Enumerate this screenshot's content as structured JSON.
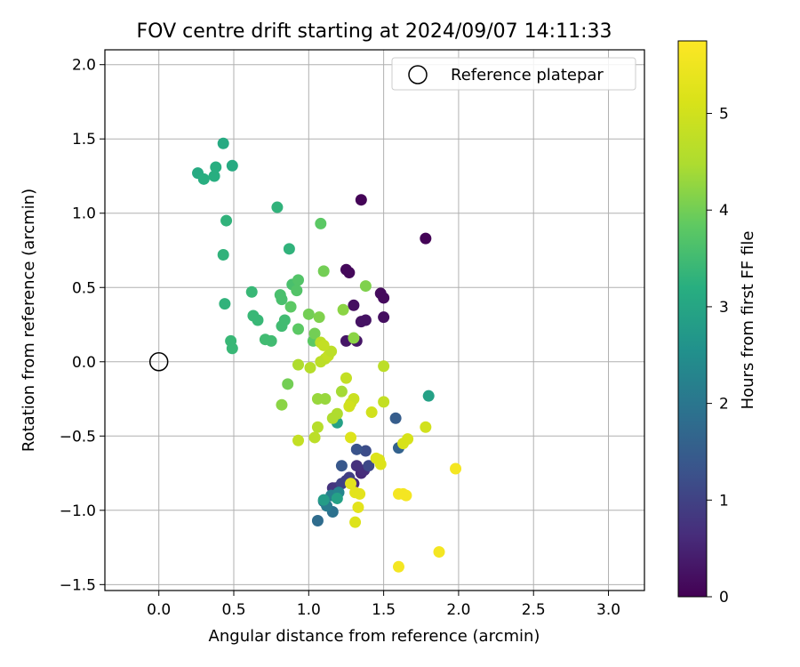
{
  "chart_data": {
    "type": "scatter",
    "title": "FOV centre drift starting at 2024/09/07 14:11:33",
    "xlabel": "Angular distance from reference (arcmin)",
    "ylabel": "Rotation from reference (arcmin)",
    "xlim": [
      -0.36,
      3.24
    ],
    "ylim": [
      -1.54,
      2.1
    ],
    "xticks": [
      0.0,
      0.5,
      1.0,
      1.5,
      2.0,
      2.5,
      3.0
    ],
    "xtick_labels": [
      "0.0",
      "0.5",
      "1.0",
      "1.5",
      "2.0",
      "2.5",
      "3.0"
    ],
    "yticks": [
      -1.5,
      -1.0,
      -0.5,
      0.0,
      0.5,
      1.0,
      1.5,
      2.0
    ],
    "ytick_labels": [
      "−1.5",
      "−1.0",
      "−0.5",
      "0.0",
      "0.5",
      "1.0",
      "1.5",
      "2.0"
    ],
    "grid": true,
    "legend_position": "top-right",
    "legend": [
      {
        "label": "Reference platepar",
        "marker": "open-circle"
      }
    ],
    "reference_point": {
      "x": 0.0,
      "y": 0.0
    },
    "colorbar": {
      "label": "Hours from first FF file",
      "colormap": "viridis",
      "range": [
        0,
        5.75
      ],
      "ticks": [
        0,
        1,
        2,
        3,
        4,
        5
      ],
      "tick_labels": [
        "0",
        "1",
        "2",
        "3",
        "4",
        "5"
      ]
    },
    "points": [
      {
        "x": 1.35,
        "y": 1.09,
        "c": 0.05
      },
      {
        "x": 1.78,
        "y": 0.83,
        "c": 0.05
      },
      {
        "x": 1.25,
        "y": 0.62,
        "c": 0.1
      },
      {
        "x": 1.27,
        "y": 0.6,
        "c": 0.1
      },
      {
        "x": 1.48,
        "y": 0.46,
        "c": 0.15
      },
      {
        "x": 1.5,
        "y": 0.43,
        "c": 0.15
      },
      {
        "x": 1.3,
        "y": 0.38,
        "c": 0.2
      },
      {
        "x": 1.5,
        "y": 0.3,
        "c": 0.2
      },
      {
        "x": 1.35,
        "y": 0.27,
        "c": 0.25
      },
      {
        "x": 1.38,
        "y": 0.28,
        "c": 0.25
      },
      {
        "x": 1.25,
        "y": 0.14,
        "c": 0.3
      },
      {
        "x": 1.32,
        "y": 0.14,
        "c": 0.3
      },
      {
        "x": 1.3,
        "y": -0.82,
        "c": 0.6
      },
      {
        "x": 1.35,
        "y": -0.75,
        "c": 0.6
      },
      {
        "x": 1.37,
        "y": -0.73,
        "c": 0.65
      },
      {
        "x": 1.32,
        "y": -0.7,
        "c": 0.7
      },
      {
        "x": 1.16,
        "y": -0.85,
        "c": 0.75
      },
      {
        "x": 1.18,
        "y": -0.85,
        "c": 0.8
      },
      {
        "x": 1.25,
        "y": -0.8,
        "c": 0.9
      },
      {
        "x": 1.27,
        "y": -0.78,
        "c": 0.95
      },
      {
        "x": 1.22,
        "y": -0.82,
        "c": 1.0
      },
      {
        "x": 1.4,
        "y": -0.7,
        "c": 1.1
      },
      {
        "x": 1.38,
        "y": -0.6,
        "c": 1.2
      },
      {
        "x": 1.32,
        "y": -0.59,
        "c": 1.3
      },
      {
        "x": 1.22,
        "y": -0.7,
        "c": 1.4
      },
      {
        "x": 1.58,
        "y": -0.38,
        "c": 1.5
      },
      {
        "x": 1.6,
        "y": -0.58,
        "c": 1.6
      },
      {
        "x": 1.06,
        "y": -1.07,
        "c": 1.8
      },
      {
        "x": 1.16,
        "y": -1.01,
        "c": 1.9
      },
      {
        "x": 1.1,
        "y": -0.94,
        "c": 2.0
      },
      {
        "x": 1.12,
        "y": -0.97,
        "c": 2.1
      },
      {
        "x": 1.15,
        "y": -0.9,
        "c": 2.2
      },
      {
        "x": 1.2,
        "y": -0.88,
        "c": 2.3
      },
      {
        "x": 1.8,
        "y": -0.23,
        "c": 2.9
      },
      {
        "x": 1.1,
        "y": -0.93,
        "c": 2.8
      },
      {
        "x": 1.19,
        "y": -0.92,
        "c": 2.9
      },
      {
        "x": 1.19,
        "y": -0.41,
        "c": 2.9
      },
      {
        "x": 0.43,
        "y": 1.47,
        "c": 3.1
      },
      {
        "x": 0.49,
        "y": 1.32,
        "c": 3.1
      },
      {
        "x": 0.26,
        "y": 1.27,
        "c": 3.1
      },
      {
        "x": 0.38,
        "y": 1.31,
        "c": 3.2
      },
      {
        "x": 0.3,
        "y": 1.23,
        "c": 3.2
      },
      {
        "x": 0.37,
        "y": 1.25,
        "c": 3.2
      },
      {
        "x": 0.79,
        "y": 1.04,
        "c": 3.3
      },
      {
        "x": 0.45,
        "y": 0.95,
        "c": 3.3
      },
      {
        "x": 0.43,
        "y": 0.72,
        "c": 3.3
      },
      {
        "x": 0.87,
        "y": 0.76,
        "c": 3.3
      },
      {
        "x": 0.44,
        "y": 0.39,
        "c": 3.3
      },
      {
        "x": 0.62,
        "y": 0.47,
        "c": 3.4
      },
      {
        "x": 0.63,
        "y": 0.31,
        "c": 3.4
      },
      {
        "x": 0.66,
        "y": 0.28,
        "c": 3.4
      },
      {
        "x": 0.48,
        "y": 0.14,
        "c": 3.4
      },
      {
        "x": 0.49,
        "y": 0.09,
        "c": 3.4
      },
      {
        "x": 0.71,
        "y": 0.15,
        "c": 3.5
      },
      {
        "x": 0.75,
        "y": 0.14,
        "c": 3.5
      },
      {
        "x": 0.82,
        "y": 0.24,
        "c": 3.5
      },
      {
        "x": 0.84,
        "y": 0.28,
        "c": 3.5
      },
      {
        "x": 0.82,
        "y": 0.42,
        "c": 3.6
      },
      {
        "x": 0.81,
        "y": 0.45,
        "c": 3.6
      },
      {
        "x": 0.89,
        "y": 0.52,
        "c": 3.6
      },
      {
        "x": 0.92,
        "y": 0.48,
        "c": 3.7
      },
      {
        "x": 0.93,
        "y": 0.55,
        "c": 3.7
      },
      {
        "x": 0.88,
        "y": 0.37,
        "c": 3.8
      },
      {
        "x": 0.93,
        "y": 0.22,
        "c": 3.8
      },
      {
        "x": 1.08,
        "y": 0.93,
        "c": 3.8
      },
      {
        "x": 1.03,
        "y": 0.14,
        "c": 3.8
      },
      {
        "x": 1.1,
        "y": 0.61,
        "c": 4.0
      },
      {
        "x": 1.04,
        "y": 0.19,
        "c": 4.0
      },
      {
        "x": 1.0,
        "y": 0.32,
        "c": 4.0
      },
      {
        "x": 1.07,
        "y": 0.3,
        "c": 4.1
      },
      {
        "x": 0.86,
        "y": -0.15,
        "c": 4.0
      },
      {
        "x": 0.82,
        "y": -0.29,
        "c": 4.2
      },
      {
        "x": 1.38,
        "y": 0.51,
        "c": 4.1
      },
      {
        "x": 1.23,
        "y": 0.35,
        "c": 4.2
      },
      {
        "x": 1.3,
        "y": 0.16,
        "c": 4.2
      },
      {
        "x": 1.06,
        "y": -0.25,
        "c": 4.3
      },
      {
        "x": 1.11,
        "y": -0.25,
        "c": 4.3
      },
      {
        "x": 1.22,
        "y": -0.2,
        "c": 4.4
      },
      {
        "x": 1.19,
        "y": -0.35,
        "c": 4.5
      },
      {
        "x": 1.16,
        "y": -0.38,
        "c": 4.5
      },
      {
        "x": 1.06,
        "y": -0.44,
        "c": 4.6
      },
      {
        "x": 1.04,
        "y": -0.51,
        "c": 4.7
      },
      {
        "x": 0.93,
        "y": -0.53,
        "c": 4.8
      },
      {
        "x": 0.93,
        "y": -0.02,
        "c": 4.5
      },
      {
        "x": 1.01,
        "y": -0.04,
        "c": 4.6
      },
      {
        "x": 1.08,
        "y": 0.0,
        "c": 4.7
      },
      {
        "x": 1.11,
        "y": 0.02,
        "c": 4.7
      },
      {
        "x": 1.13,
        "y": 0.04,
        "c": 4.8
      },
      {
        "x": 1.15,
        "y": 0.07,
        "c": 4.7
      },
      {
        "x": 1.08,
        "y": 0.13,
        "c": 4.7
      },
      {
        "x": 1.1,
        "y": 0.11,
        "c": 4.8
      },
      {
        "x": 1.25,
        "y": -0.11,
        "c": 4.8
      },
      {
        "x": 1.3,
        "y": -0.25,
        "c": 4.9
      },
      {
        "x": 1.28,
        "y": -0.28,
        "c": 4.9
      },
      {
        "x": 1.27,
        "y": -0.3,
        "c": 5.0
      },
      {
        "x": 1.42,
        "y": -0.34,
        "c": 5.0
      },
      {
        "x": 1.5,
        "y": -0.03,
        "c": 4.7
      },
      {
        "x": 1.5,
        "y": -0.27,
        "c": 4.8
      },
      {
        "x": 1.78,
        "y": -0.44,
        "c": 5.0
      },
      {
        "x": 1.66,
        "y": -0.52,
        "c": 5.1
      },
      {
        "x": 1.63,
        "y": -0.55,
        "c": 5.1
      },
      {
        "x": 1.28,
        "y": -0.51,
        "c": 5.2
      },
      {
        "x": 1.45,
        "y": -0.65,
        "c": 5.2
      },
      {
        "x": 1.48,
        "y": -0.69,
        "c": 5.2
      },
      {
        "x": 1.47,
        "y": -0.66,
        "c": 5.2
      },
      {
        "x": 1.28,
        "y": -0.82,
        "c": 5.3
      },
      {
        "x": 1.31,
        "y": -0.88,
        "c": 5.3
      },
      {
        "x": 1.34,
        "y": -0.89,
        "c": 5.3
      },
      {
        "x": 1.33,
        "y": -0.98,
        "c": 5.3
      },
      {
        "x": 1.31,
        "y": -1.08,
        "c": 5.2
      },
      {
        "x": 1.6,
        "y": -0.89,
        "c": 5.6
      },
      {
        "x": 1.63,
        "y": -0.89,
        "c": 5.6
      },
      {
        "x": 1.65,
        "y": -0.9,
        "c": 5.6
      },
      {
        "x": 1.98,
        "y": -0.72,
        "c": 5.6
      },
      {
        "x": 1.87,
        "y": -1.28,
        "c": 5.6
      },
      {
        "x": 1.6,
        "y": -1.38,
        "c": 5.6
      }
    ]
  }
}
